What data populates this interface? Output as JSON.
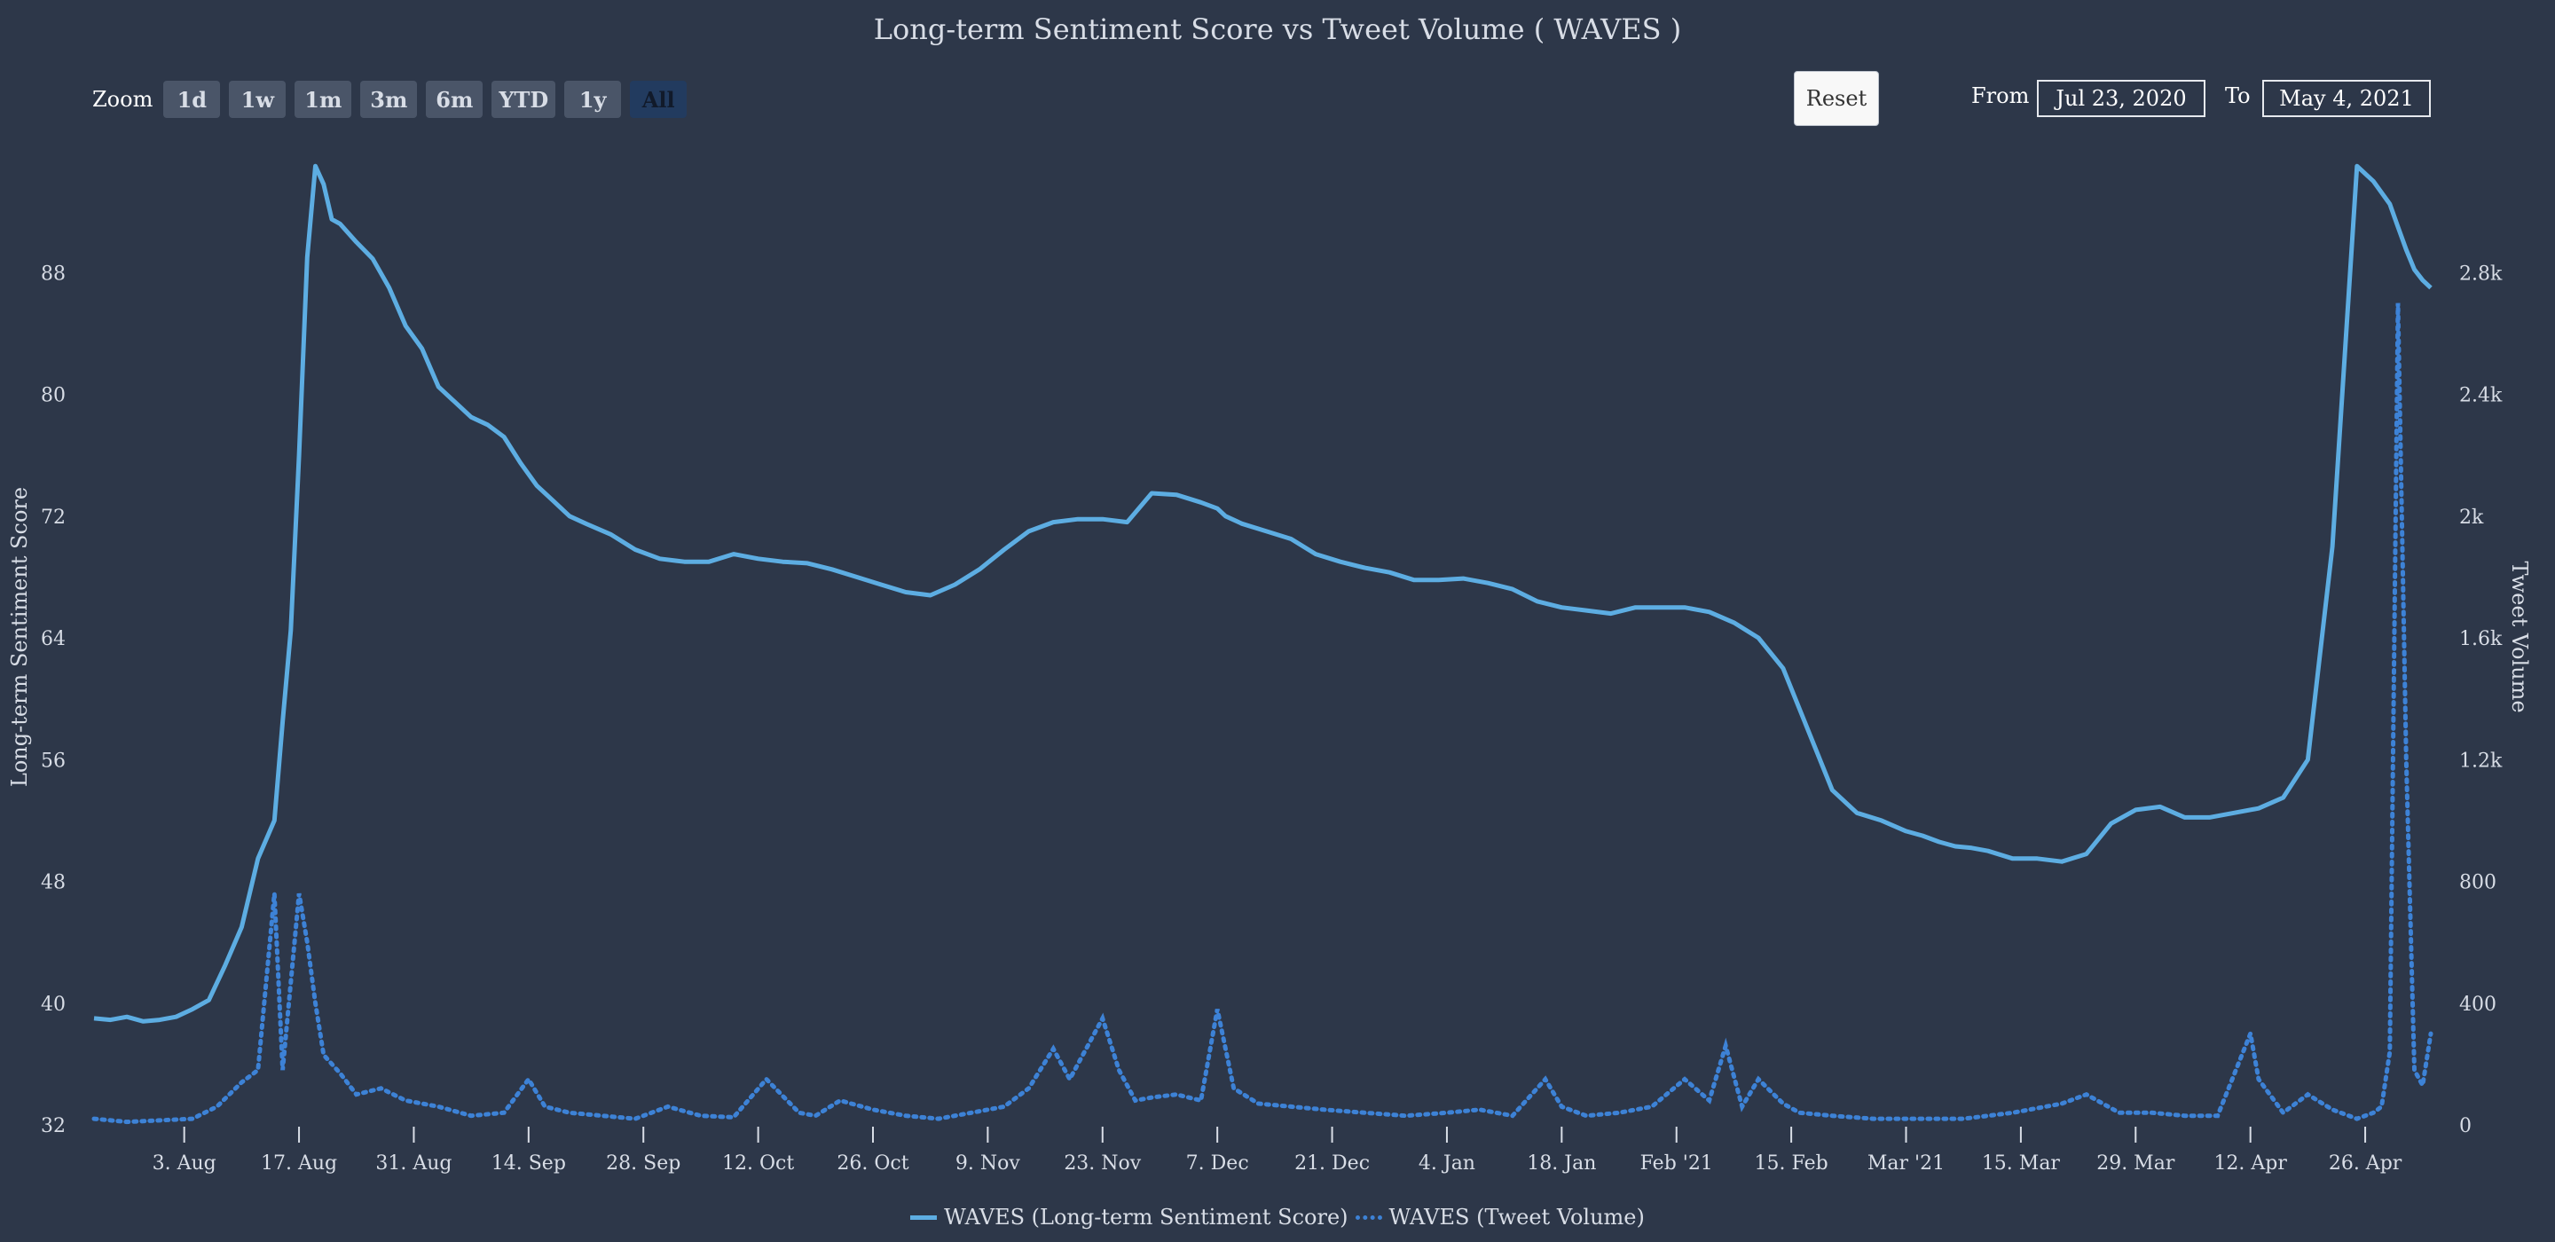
{
  "title": "Long-term Sentiment Score vs Tweet Volume ( WAVES )",
  "zoom": {
    "label": "Zoom",
    "buttons": [
      "1d",
      "1w",
      "1m",
      "3m",
      "6m",
      "YTD",
      "1y",
      "All"
    ],
    "active": "All"
  },
  "reset_label": "Reset",
  "range": {
    "from_label": "From",
    "from_value": "Jul 23, 2020",
    "to_label": "To",
    "to_value": "May 4, 2021"
  },
  "colors": {
    "background": "#2d3749",
    "sentiment_line": "#5dade2",
    "volume_line": "#3d82d6"
  },
  "chart_data": {
    "type": "line",
    "title": "Long-term Sentiment Score vs Tweet Volume ( WAVES )",
    "x_range": [
      "2020-07-23",
      "2021-05-04"
    ],
    "x_ticks": [
      {
        "date": "2020-08-03",
        "label": "3. Aug"
      },
      {
        "date": "2020-08-17",
        "label": "17. Aug"
      },
      {
        "date": "2020-08-31",
        "label": "31. Aug"
      },
      {
        "date": "2020-09-14",
        "label": "14. Sep"
      },
      {
        "date": "2020-09-28",
        "label": "28. Sep"
      },
      {
        "date": "2020-10-12",
        "label": "12. Oct"
      },
      {
        "date": "2020-10-26",
        "label": "26. Oct"
      },
      {
        "date": "2020-11-09",
        "label": "9. Nov"
      },
      {
        "date": "2020-11-23",
        "label": "23. Nov"
      },
      {
        "date": "2020-12-07",
        "label": "7. Dec"
      },
      {
        "date": "2020-12-21",
        "label": "21. Dec"
      },
      {
        "date": "2021-01-04",
        "label": "4. Jan"
      },
      {
        "date": "2021-01-18",
        "label": "18. Jan"
      },
      {
        "date": "2021-02-01",
        "label": "Feb '21"
      },
      {
        "date": "2021-02-15",
        "label": "15. Feb"
      },
      {
        "date": "2021-03-01",
        "label": "Mar '21"
      },
      {
        "date": "2021-03-15",
        "label": "15. Mar"
      },
      {
        "date": "2021-03-29",
        "label": "29. Mar"
      },
      {
        "date": "2021-04-12",
        "label": "12. Apr"
      },
      {
        "date": "2021-04-26",
        "label": "26. Apr"
      }
    ],
    "y_left": {
      "label": "Long-term Sentiment Score",
      "range": [
        32,
        96
      ],
      "ticks": [
        32,
        40,
        48,
        56,
        64,
        72,
        80,
        88
      ]
    },
    "y_right": {
      "label": "Tweet Volume",
      "range": [
        0,
        3200
      ],
      "ticks": [
        {
          "value": 0,
          "label": "0"
        },
        {
          "value": 400,
          "label": "400"
        },
        {
          "value": 800,
          "label": "800"
        },
        {
          "value": 1200,
          "label": "1.2k"
        },
        {
          "value": 1600,
          "label": "1.6k"
        },
        {
          "value": 2000,
          "label": "2k"
        },
        {
          "value": 2400,
          "label": "2.4k"
        },
        {
          "value": 2800,
          "label": "2.8k"
        }
      ]
    },
    "legend_position": "bottom-center",
    "grid": false,
    "series": [
      {
        "name": "WAVES (Long-term Sentiment Score)",
        "axis": "left",
        "style": "solid",
        "x": [
          "2020-07-23",
          "2020-07-25",
          "2020-07-27",
          "2020-07-29",
          "2020-07-31",
          "2020-08-02",
          "2020-08-04",
          "2020-08-06",
          "2020-08-08",
          "2020-08-10",
          "2020-08-12",
          "2020-08-14",
          "2020-08-15",
          "2020-08-16",
          "2020-08-17",
          "2020-08-18",
          "2020-08-19",
          "2020-08-20",
          "2020-08-21",
          "2020-08-22",
          "2020-08-24",
          "2020-08-26",
          "2020-08-28",
          "2020-08-30",
          "2020-09-01",
          "2020-09-03",
          "2020-09-05",
          "2020-09-07",
          "2020-09-09",
          "2020-09-11",
          "2020-09-13",
          "2020-09-15",
          "2020-09-17",
          "2020-09-19",
          "2020-09-21",
          "2020-09-24",
          "2020-09-27",
          "2020-09-30",
          "2020-10-03",
          "2020-10-06",
          "2020-10-09",
          "2020-10-12",
          "2020-10-15",
          "2020-10-18",
          "2020-10-21",
          "2020-10-24",
          "2020-10-27",
          "2020-10-30",
          "2020-11-02",
          "2020-11-05",
          "2020-11-08",
          "2020-11-11",
          "2020-11-14",
          "2020-11-17",
          "2020-11-20",
          "2020-11-23",
          "2020-11-26",
          "2020-11-29",
          "2020-12-02",
          "2020-12-05",
          "2020-12-07",
          "2020-12-08",
          "2020-12-10",
          "2020-12-13",
          "2020-12-16",
          "2020-12-19",
          "2020-12-22",
          "2020-12-25",
          "2020-12-28",
          "2020-12-31",
          "2021-01-03",
          "2021-01-06",
          "2021-01-09",
          "2021-01-12",
          "2021-01-15",
          "2021-01-18",
          "2021-01-21",
          "2021-01-24",
          "2021-01-27",
          "2021-01-30",
          "2021-02-02",
          "2021-02-05",
          "2021-02-08",
          "2021-02-11",
          "2021-02-14",
          "2021-02-17",
          "2021-02-20",
          "2021-02-23",
          "2021-02-26",
          "2021-03-01",
          "2021-03-03",
          "2021-03-05",
          "2021-03-07",
          "2021-03-09",
          "2021-03-11",
          "2021-03-14",
          "2021-03-17",
          "2021-03-20",
          "2021-03-23",
          "2021-03-26",
          "2021-03-29",
          "2021-04-01",
          "2021-04-04",
          "2021-04-07",
          "2021-04-10",
          "2021-04-13",
          "2021-04-16",
          "2021-04-19",
          "2021-04-22",
          "2021-04-25",
          "2021-04-27",
          "2021-04-29",
          "2021-04-30",
          "2021-05-01",
          "2021-05-02",
          "2021-05-03",
          "2021-05-04"
        ],
        "y": [
          39.0,
          38.9,
          39.1,
          38.8,
          38.9,
          39.1,
          39.6,
          40.2,
          42.5,
          45.0,
          49.5,
          52.0,
          58.5,
          64.5,
          76.0,
          89.0,
          95.0,
          93.8,
          91.5,
          91.2,
          90.0,
          88.9,
          87.0,
          84.5,
          83.0,
          80.5,
          79.5,
          78.5,
          78.0,
          77.2,
          75.5,
          74.0,
          73.0,
          72.0,
          71.5,
          70.8,
          69.8,
          69.2,
          69.0,
          69.0,
          69.5,
          69.2,
          69.0,
          68.9,
          68.5,
          68.0,
          67.5,
          67.0,
          66.8,
          67.5,
          68.5,
          69.8,
          71.0,
          71.6,
          71.8,
          71.8,
          71.6,
          73.5,
          73.4,
          72.9,
          72.5,
          72.0,
          71.5,
          71.0,
          70.5,
          69.5,
          69.0,
          68.6,
          68.3,
          67.8,
          67.8,
          67.9,
          67.6,
          67.2,
          66.4,
          66.0,
          65.8,
          65.6,
          66.0,
          66.0,
          66.0,
          65.7,
          65.0,
          64.0,
          62.0,
          58.0,
          54.0,
          52.5,
          52.0,
          51.3,
          51.0,
          50.6,
          50.3,
          50.2,
          50.0,
          49.5,
          49.5,
          49.3,
          49.8,
          51.8,
          52.7,
          52.9,
          52.2,
          52.2,
          52.5,
          52.8,
          53.5,
          56.0,
          70.0,
          95.0,
          94.0,
          92.5,
          91.0,
          89.5,
          88.2,
          87.5,
          87.0
        ]
      },
      {
        "name": "WAVES (Tweet Volume)",
        "axis": "right",
        "style": "dotted",
        "x": [
          "2020-07-23",
          "2020-07-27",
          "2020-07-31",
          "2020-08-04",
          "2020-08-07",
          "2020-08-10",
          "2020-08-12",
          "2020-08-14",
          "2020-08-15",
          "2020-08-17",
          "2020-08-18",
          "2020-08-19",
          "2020-08-20",
          "2020-08-22",
          "2020-08-24",
          "2020-08-27",
          "2020-08-30",
          "2020-09-03",
          "2020-09-07",
          "2020-09-11",
          "2020-09-14",
          "2020-09-16",
          "2020-09-19",
          "2020-09-23",
          "2020-09-27",
          "2020-10-01",
          "2020-10-05",
          "2020-10-09",
          "2020-10-13",
          "2020-10-17",
          "2020-10-19",
          "2020-10-22",
          "2020-10-26",
          "2020-10-30",
          "2020-11-03",
          "2020-11-07",
          "2020-11-11",
          "2020-11-14",
          "2020-11-17",
          "2020-11-19",
          "2020-11-21",
          "2020-11-23",
          "2020-11-25",
          "2020-11-27",
          "2020-11-29",
          "2020-12-02",
          "2020-12-05",
          "2020-12-07",
          "2020-12-09",
          "2020-12-12",
          "2020-12-16",
          "2020-12-20",
          "2020-12-25",
          "2020-12-30",
          "2021-01-04",
          "2021-01-08",
          "2021-01-12",
          "2021-01-16",
          "2021-01-18",
          "2021-01-21",
          "2021-01-25",
          "2021-01-29",
          "2021-02-02",
          "2021-02-05",
          "2021-02-07",
          "2021-02-09",
          "2021-02-11",
          "2021-02-14",
          "2021-02-16",
          "2021-02-20",
          "2021-02-25",
          "2021-03-02",
          "2021-03-08",
          "2021-03-14",
          "2021-03-20",
          "2021-03-23",
          "2021-03-27",
          "2021-03-31",
          "2021-04-04",
          "2021-04-08",
          "2021-04-12",
          "2021-04-13",
          "2021-04-16",
          "2021-04-19",
          "2021-04-22",
          "2021-04-25",
          "2021-04-27",
          "2021-04-28",
          "2021-04-29",
          "2021-04-30",
          "2021-05-01",
          "2021-05-02",
          "2021-05-03",
          "2021-05-04"
        ],
        "y": [
          20,
          10,
          15,
          20,
          60,
          140,
          180,
          760,
          180,
          760,
          600,
          400,
          230,
          170,
          100,
          120,
          80,
          60,
          30,
          40,
          150,
          60,
          40,
          30,
          20,
          60,
          30,
          25,
          150,
          40,
          30,
          80,
          50,
          30,
          20,
          40,
          60,
          120,
          250,
          150,
          250,
          350,
          180,
          80,
          90,
          100,
          80,
          380,
          120,
          70,
          60,
          50,
          40,
          30,
          40,
          50,
          30,
          150,
          60,
          30,
          40,
          60,
          150,
          80,
          260,
          60,
          150,
          70,
          40,
          30,
          20,
          20,
          20,
          40,
          70,
          100,
          40,
          40,
          30,
          30,
          300,
          150,
          40,
          100,
          50,
          20,
          40,
          60,
          240,
          2700,
          1200,
          180,
          130,
          300
        ]
      }
    ]
  }
}
